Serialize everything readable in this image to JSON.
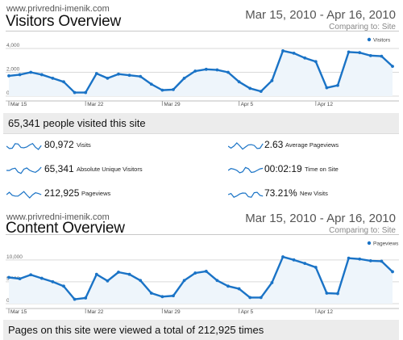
{
  "visitors": {
    "site": "www.privredni-imenik.com",
    "title": "Visitors Overview",
    "date_range": "Mar 15, 2010 - Apr 16, 2010",
    "comparing": "Comparing to: Site",
    "summary": "65,341 people visited this site",
    "metrics": [
      {
        "value": "80,972",
        "label": "Visits"
      },
      {
        "value": "2.63",
        "label": "Average Pageviews"
      },
      {
        "value": "65,341",
        "label": "Absolute Unique Visitors"
      },
      {
        "value": "00:02:19",
        "label": "Time on Site"
      },
      {
        "value": "212,925",
        "label": "Pageviews"
      },
      {
        "value": "73.21%",
        "label": "New Visits"
      }
    ]
  },
  "content": {
    "site": "www.privredni-imenik.com",
    "title": "Content Overview",
    "date_range": "Mar 15, 2010 - Apr 16, 2010",
    "comparing": "Comparing to: Site",
    "summary": "Pages on this site were viewed a total of 212,925 times"
  },
  "colors": {
    "line": "#1a73c6",
    "fill": "#eef5fb",
    "grid": "#d9d9d9",
    "banner": "#ececec"
  },
  "chart_data": [
    {
      "type": "line",
      "series": [
        {
          "name": "Visitors",
          "values": [
            1700,
            1800,
            2000,
            1800,
            1500,
            1200,
            300,
            300,
            1900,
            1500,
            1850,
            1750,
            1650,
            1000,
            500,
            550,
            1500,
            2100,
            2250,
            2200,
            2000,
            1200,
            650,
            400,
            1300,
            3800,
            3600,
            3200,
            2900,
            700,
            900,
            3700,
            3650,
            3400,
            3350,
            2500
          ]
        }
      ],
      "x_ticks": [
        "Mar 15",
        "Mar 22",
        "Mar 29",
        "Apr 5",
        "Apr 12"
      ],
      "y_ticks": [
        "4,000",
        "2,000",
        "0"
      ],
      "ylim": [
        0,
        4000
      ],
      "legend": "top-right"
    },
    {
      "type": "line",
      "series": [
        {
          "name": "Pageviews",
          "values": [
            6000,
            5700,
            6600,
            5800,
            5000,
            4000,
            1000,
            1300,
            6700,
            5200,
            7200,
            6700,
            5300,
            2400,
            1600,
            1800,
            5300,
            7000,
            7400,
            5300,
            4000,
            3400,
            1400,
            1400,
            4800,
            10700,
            10000,
            9200,
            8300,
            2400,
            2300,
            10400,
            10200,
            9800,
            9700,
            7300
          ]
        }
      ],
      "x_ticks": [
        "Mar 15",
        "Mar 22",
        "Mar 29",
        "Apr 5",
        "Apr 12"
      ],
      "y_ticks": [
        "10,000",
        "5,000",
        "0"
      ],
      "ylim": [
        0,
        12000
      ],
      "legend": "top-right"
    }
  ]
}
